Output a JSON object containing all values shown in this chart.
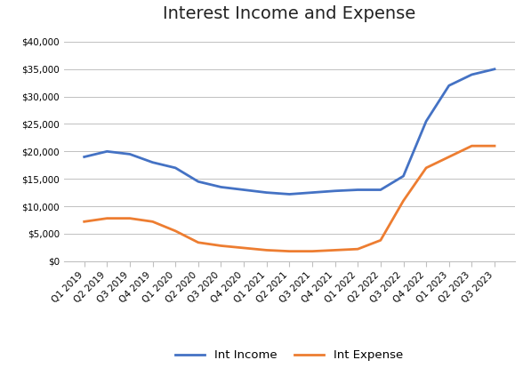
{
  "title": "Interest Income and Expense",
  "categories": [
    "Q1 2019",
    "Q2 2019",
    "Q3 2019",
    "Q4 2019",
    "Q1 2020",
    "Q2 2020",
    "Q3 2020",
    "Q4 2020",
    "Q1 2021",
    "Q2 2021",
    "Q3 2021",
    "Q4 2021",
    "Q1 2022",
    "Q2 2022",
    "Q3 2022",
    "Q4 2022",
    "Q1 2023",
    "Q2 2023",
    "Q3 2023"
  ],
  "int_income": [
    19000,
    20000,
    19500,
    18000,
    17000,
    14500,
    13500,
    13000,
    12500,
    12200,
    12500,
    12800,
    13000,
    13000,
    15500,
    25500,
    32000,
    34000,
    35000
  ],
  "int_expense": [
    7200,
    7800,
    7800,
    7200,
    5500,
    3400,
    2800,
    2400,
    2000,
    1800,
    1800,
    2000,
    2200,
    3800,
    11000,
    17000,
    19000,
    21000,
    21000
  ],
  "income_color": "#4472C4",
  "expense_color": "#ED7D31",
  "ylim": [
    0,
    42000
  ],
  "yticks": [
    0,
    5000,
    10000,
    15000,
    20000,
    25000,
    30000,
    35000,
    40000
  ],
  "legend_labels": [
    "Int Income",
    "Int Expense"
  ],
  "background_color": "#FFFFFF",
  "grid_color": "#C0C0C0",
  "title_fontsize": 14,
  "tick_fontsize": 7.5,
  "legend_fontsize": 9.5,
  "linewidth": 2.0
}
